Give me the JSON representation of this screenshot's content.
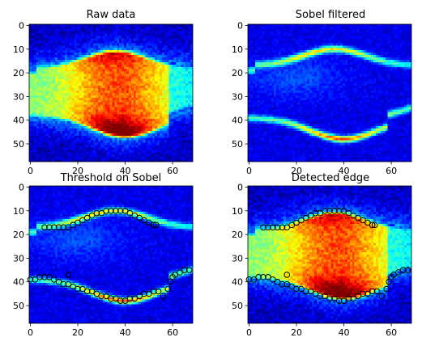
{
  "chart_data": [
    {
      "type": "heatmap",
      "title": "Raw data",
      "colormap": "jet",
      "xlim": [
        -0.5,
        68.5
      ],
      "ylim": [
        57.5,
        -0.5
      ],
      "xticks": [
        0,
        20,
        40,
        60
      ],
      "yticks": [
        0,
        10,
        20,
        30,
        40,
        50
      ],
      "image": "raw",
      "markers": []
    },
    {
      "type": "heatmap",
      "title": "Sobel filtered",
      "colormap": "jet",
      "xlim": [
        -0.5,
        68.5
      ],
      "ylim": [
        57.5,
        -0.5
      ],
      "xticks": [
        0,
        20,
        40,
        60
      ],
      "yticks": [
        0,
        10,
        20,
        30,
        40,
        50
      ],
      "image": "sobel",
      "markers": []
    },
    {
      "type": "heatmap",
      "title": "Threshold on Sobel",
      "colormap": "jet",
      "xlim": [
        -0.5,
        68.5
      ],
      "ylim": [
        57.5,
        -0.5
      ],
      "xticks": [
        0,
        20,
        40,
        60
      ],
      "yticks": [
        0,
        10,
        20,
        30,
        40,
        50
      ],
      "image": "sobel",
      "markers": "edge_points"
    },
    {
      "type": "heatmap",
      "title": "Detected edge",
      "colormap": "jet",
      "xlim": [
        -0.5,
        68.5
      ],
      "ylim": [
        57.5,
        -0.5
      ],
      "xticks": [
        0,
        20,
        40,
        60
      ],
      "yticks": [
        0,
        10,
        20,
        30,
        40,
        50
      ],
      "image": "raw",
      "markers": "edge_points"
    }
  ],
  "edge_points": [
    [
      6,
      17
    ],
    [
      8,
      17
    ],
    [
      10,
      17
    ],
    [
      12,
      17
    ],
    [
      14,
      17
    ],
    [
      16,
      17
    ],
    [
      18,
      16
    ],
    [
      20,
      15
    ],
    [
      22,
      14
    ],
    [
      24,
      13
    ],
    [
      26,
      12
    ],
    [
      28,
      11
    ],
    [
      30,
      11
    ],
    [
      32,
      10
    ],
    [
      34,
      10
    ],
    [
      36,
      10
    ],
    [
      38,
      10
    ],
    [
      40,
      10
    ],
    [
      42,
      11
    ],
    [
      44,
      12
    ],
    [
      46,
      13
    ],
    [
      48,
      14
    ],
    [
      50,
      15
    ],
    [
      52,
      16
    ],
    [
      53,
      16
    ],
    [
      0,
      39
    ],
    [
      2,
      39
    ],
    [
      4,
      38
    ],
    [
      6,
      38
    ],
    [
      8,
      38
    ],
    [
      10,
      39
    ],
    [
      12,
      40
    ],
    [
      14,
      41
    ],
    [
      16,
      41
    ],
    [
      18,
      42
    ],
    [
      20,
      43
    ],
    [
      22,
      43
    ],
    [
      24,
      44
    ],
    [
      26,
      44
    ],
    [
      28,
      45
    ],
    [
      30,
      46
    ],
    [
      32,
      46
    ],
    [
      34,
      47
    ],
    [
      36,
      47
    ],
    [
      38,
      48
    ],
    [
      40,
      48
    ],
    [
      42,
      47
    ],
    [
      44,
      47
    ],
    [
      46,
      46
    ],
    [
      48,
      45
    ],
    [
      50,
      45
    ],
    [
      52,
      44
    ],
    [
      54,
      44
    ],
    [
      56,
      46
    ],
    [
      58,
      43
    ],
    [
      59,
      40
    ],
    [
      60,
      38
    ],
    [
      61,
      37
    ],
    [
      63,
      36
    ],
    [
      65,
      35
    ],
    [
      67,
      35
    ],
    [
      16,
      37
    ]
  ]
}
